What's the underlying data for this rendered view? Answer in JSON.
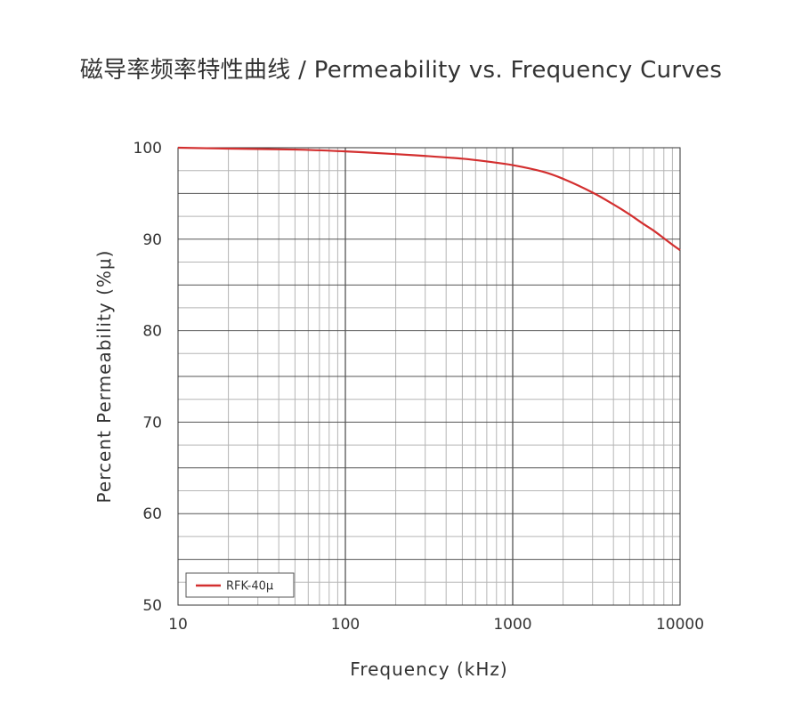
{
  "chart_data": {
    "type": "line",
    "title": "磁导率频率特性曲线 / Permeability vs. Frequency Curves",
    "xlabel": "Frequency (kHz)",
    "ylabel": "Percent Permeability (%μ)",
    "x_scale": "log",
    "xlim": [
      10,
      10000
    ],
    "ylim": [
      50,
      100
    ],
    "x_ticks": [
      "10",
      "100",
      "1000",
      "10000"
    ],
    "y_ticks": [
      "100",
      "90",
      "80",
      "70",
      "60",
      "50"
    ],
    "grid": true,
    "legend_position": "bottom-left",
    "series": [
      {
        "name": "RFK-40μ",
        "color": "#d32f2f",
        "x": [
          10,
          20,
          50,
          100,
          200,
          300,
          500,
          700,
          1000,
          1500,
          2000,
          3000,
          4000,
          5000,
          6000,
          7000,
          8000,
          9000,
          10000
        ],
        "y": [
          100,
          99.9,
          99.8,
          99.6,
          99.3,
          99.1,
          98.8,
          98.5,
          98.1,
          97.4,
          96.6,
          95.1,
          93.8,
          92.7,
          91.7,
          90.9,
          90.1,
          89.4,
          88.8
        ]
      }
    ]
  }
}
